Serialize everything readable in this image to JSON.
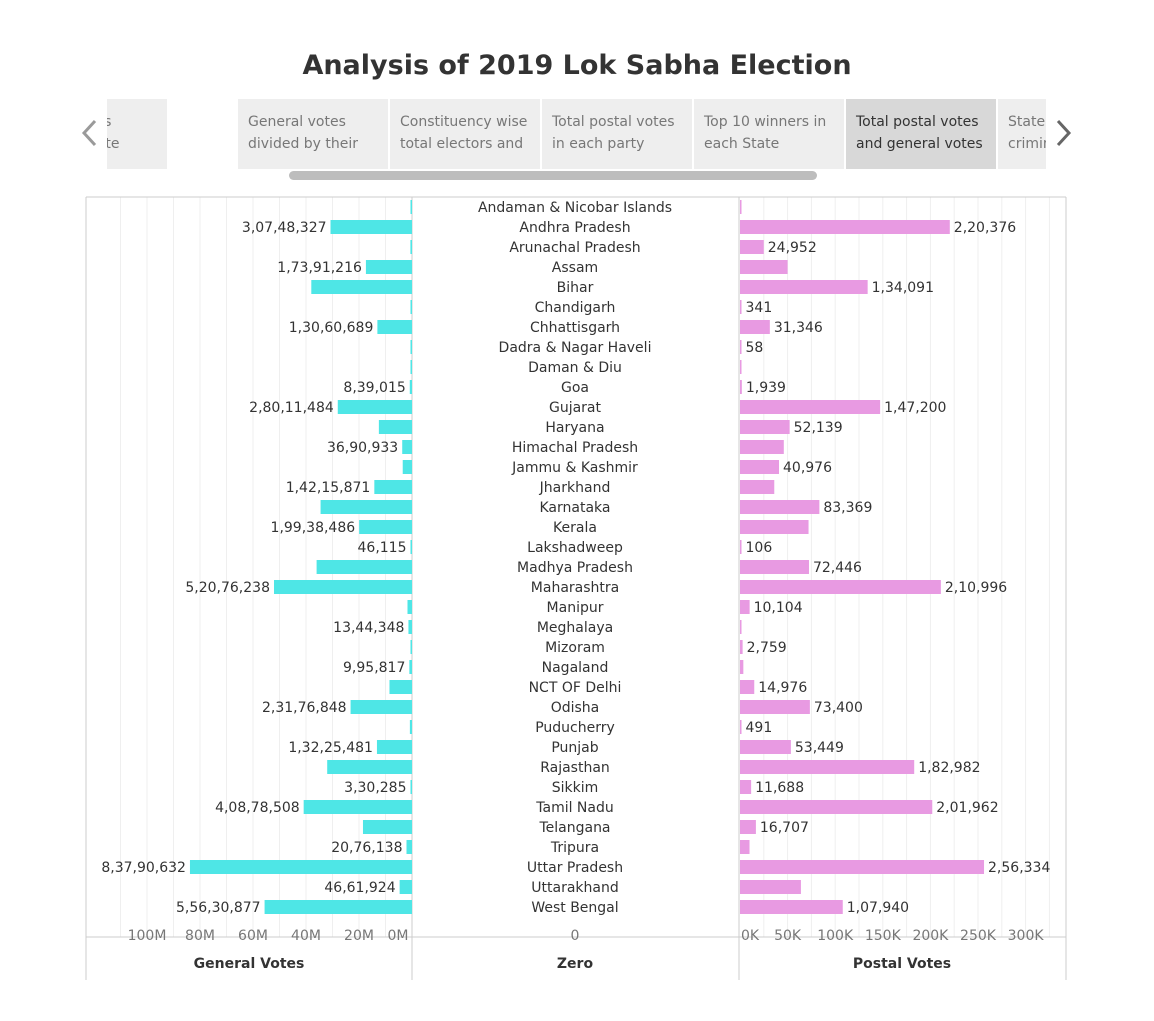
{
  "title": "Analysis of 2019 Lok Sabha Election",
  "tabs": [
    {
      "label": "Postal votes\nin each State"
    },
    {
      "label": "General votes\ndivided by their"
    },
    {
      "label": "Constituency wise\ntotal electors and"
    },
    {
      "label": "Total postal votes\nin each party"
    },
    {
      "label": "Top 10 winners in\neach State"
    },
    {
      "label": "Total postal votes\nand general votes",
      "active": true
    },
    {
      "label": "State wise\ncriminal cases"
    }
  ],
  "icons": {
    "prev": "chevron-left-icon",
    "next": "chevron-right-icon"
  },
  "colors": {
    "general": "#4ee6e6",
    "postal": "#e89ae2",
    "grid": "#efefef",
    "axis": "#cccccc"
  },
  "chart_data": {
    "type": "bar",
    "title": "Analysis of 2019 Lok Sabha Election",
    "categories": [
      "Andaman & Nicobar Islands",
      "Andhra Pradesh",
      "Arunachal Pradesh",
      "Assam",
      "Bihar",
      "Chandigarh",
      "Chhattisgarh",
      "Dadra & Nagar Haveli",
      "Daman & Diu",
      "Goa",
      "Gujarat",
      "Haryana",
      "Himachal Pradesh",
      "Jammu & Kashmir",
      "Jharkhand",
      "Karnataka",
      "Kerala",
      "Lakshadweep",
      "Madhya Pradesh",
      "Maharashtra",
      "Manipur",
      "Meghalaya",
      "Mizoram",
      "Nagaland",
      "NCT OF Delhi",
      "Odisha",
      "Puducherry",
      "Punjab",
      "Rajasthan",
      "Sikkim",
      "Tamil Nadu",
      "Telangana",
      "Tripura",
      "Uttar Pradesh",
      "Uttarakhand",
      "West Bengal"
    ],
    "middle_axis_title": "Zero",
    "middle_tick": "0",
    "series": [
      {
        "name": "General Votes",
        "values": [
          300000,
          30748327,
          600000,
          17391216,
          38000000,
          450000,
          13060689,
          400000,
          200000,
          839015,
          28011484,
          12500000,
          3690933,
          3500000,
          14215871,
          34500000,
          19938486,
          46115,
          36000000,
          52076238,
          1700000,
          1344348,
          500000,
          995817,
          8500000,
          23176848,
          800000,
          13225481,
          32000000,
          330285,
          40878508,
          18500000,
          2076138,
          83790632,
          4661924,
          55630877
        ],
        "labels": [
          "",
          "3,07,48,327",
          "",
          "1,73,91,216",
          "",
          "",
          "1,30,60,689",
          "",
          "",
          "8,39,015",
          "2,80,11,484",
          "",
          "36,90,933",
          "",
          "1,42,15,871",
          "",
          "1,99,38,486",
          "46,115",
          "",
          "5,20,76,238",
          "",
          "13,44,348",
          "",
          "9,95,817",
          "",
          "2,31,76,848",
          "",
          "1,32,25,481",
          "",
          "3,30,285",
          "4,08,78,508",
          "",
          "20,76,138",
          "8,37,90,632",
          "46,61,924",
          "5,56,30,877"
        ],
        "axis_title": "General Votes",
        "ticks": [
          "100M",
          "80M",
          "60M",
          "40M",
          "20M",
          "0M"
        ],
        "xlim": [
          0,
          115000000
        ],
        "direction": "reversed"
      },
      {
        "name": "Postal Votes",
        "values": [
          800,
          220376,
          24952,
          50000,
          134091,
          341,
          31346,
          58,
          300,
          1939,
          147200,
          52139,
          46000,
          40976,
          36000,
          83369,
          72000,
          106,
          72446,
          210996,
          10104,
          1500,
          2759,
          3500,
          14976,
          73400,
          491,
          53449,
          182982,
          11688,
          201962,
          16707,
          10000,
          256334,
          64000,
          107940
        ],
        "labels": [
          "",
          "2,20,376",
          "24,952",
          "",
          "1,34,091",
          "341",
          "31,346",
          "58",
          "",
          "1,939",
          "1,47,200",
          "52,139",
          "",
          "40,976",
          "",
          "83,369",
          "",
          "106",
          "72,446",
          "2,10,996",
          "10,104",
          "",
          "2,759",
          "",
          "14,976",
          "73,400",
          "491",
          "53,449",
          "1,82,982",
          "11,688",
          "2,01,962",
          "16,707",
          "",
          "2,56,334",
          "",
          "1,07,940"
        ],
        "axis_title": "Postal Votes",
        "ticks": [
          "0K",
          "50K",
          "100K",
          "150K",
          "200K",
          "250K",
          "300K"
        ],
        "xlim": [
          0,
          345000
        ]
      }
    ],
    "grid": true
  }
}
